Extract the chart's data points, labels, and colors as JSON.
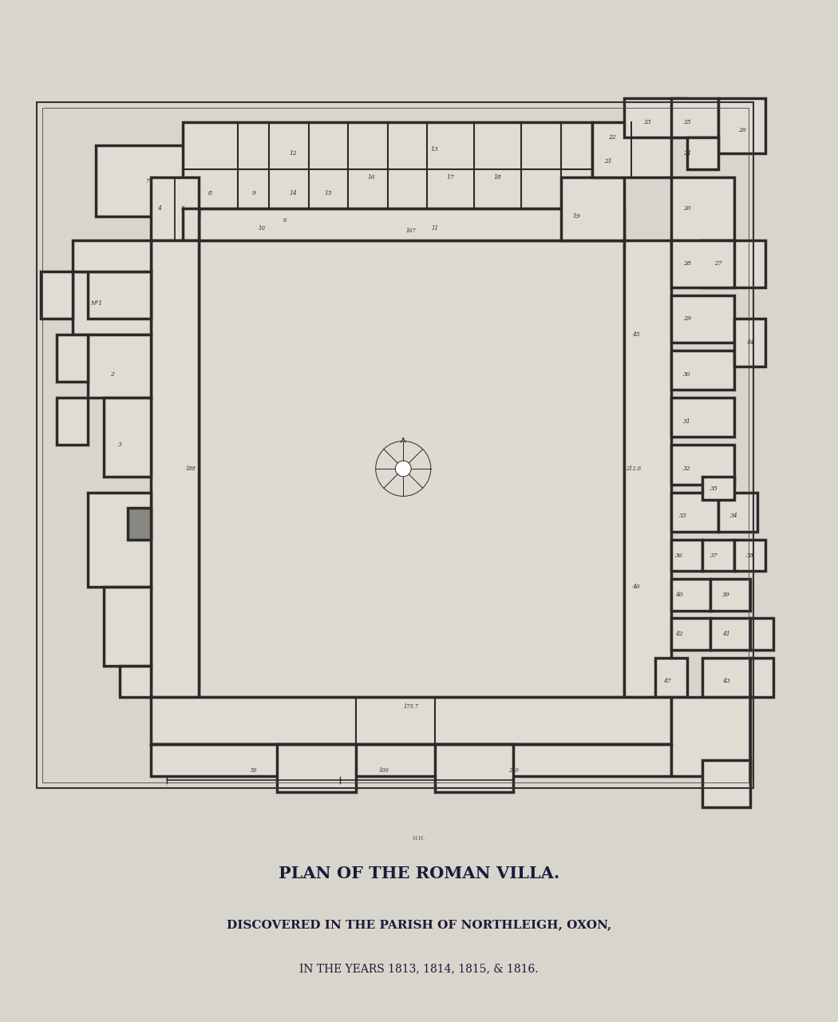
{
  "bg_color": "#c8c8c8",
  "paper_color": "#d8d5cc",
  "plan_bg": "#d8d5cc",
  "wall_color": "#2a2a2a",
  "wall_lw": 2.5,
  "title1": "PLAN OF THE ROMAN VILLA.",
  "title2": "DISCOVERED IN THE PARISH OF NORTHLEIGH, OXON,",
  "title3": "IN THE YEARS 1813, 1814, 1815, & 1816.",
  "title1_size": 15,
  "title2_size": 11,
  "title3_size": 10
}
